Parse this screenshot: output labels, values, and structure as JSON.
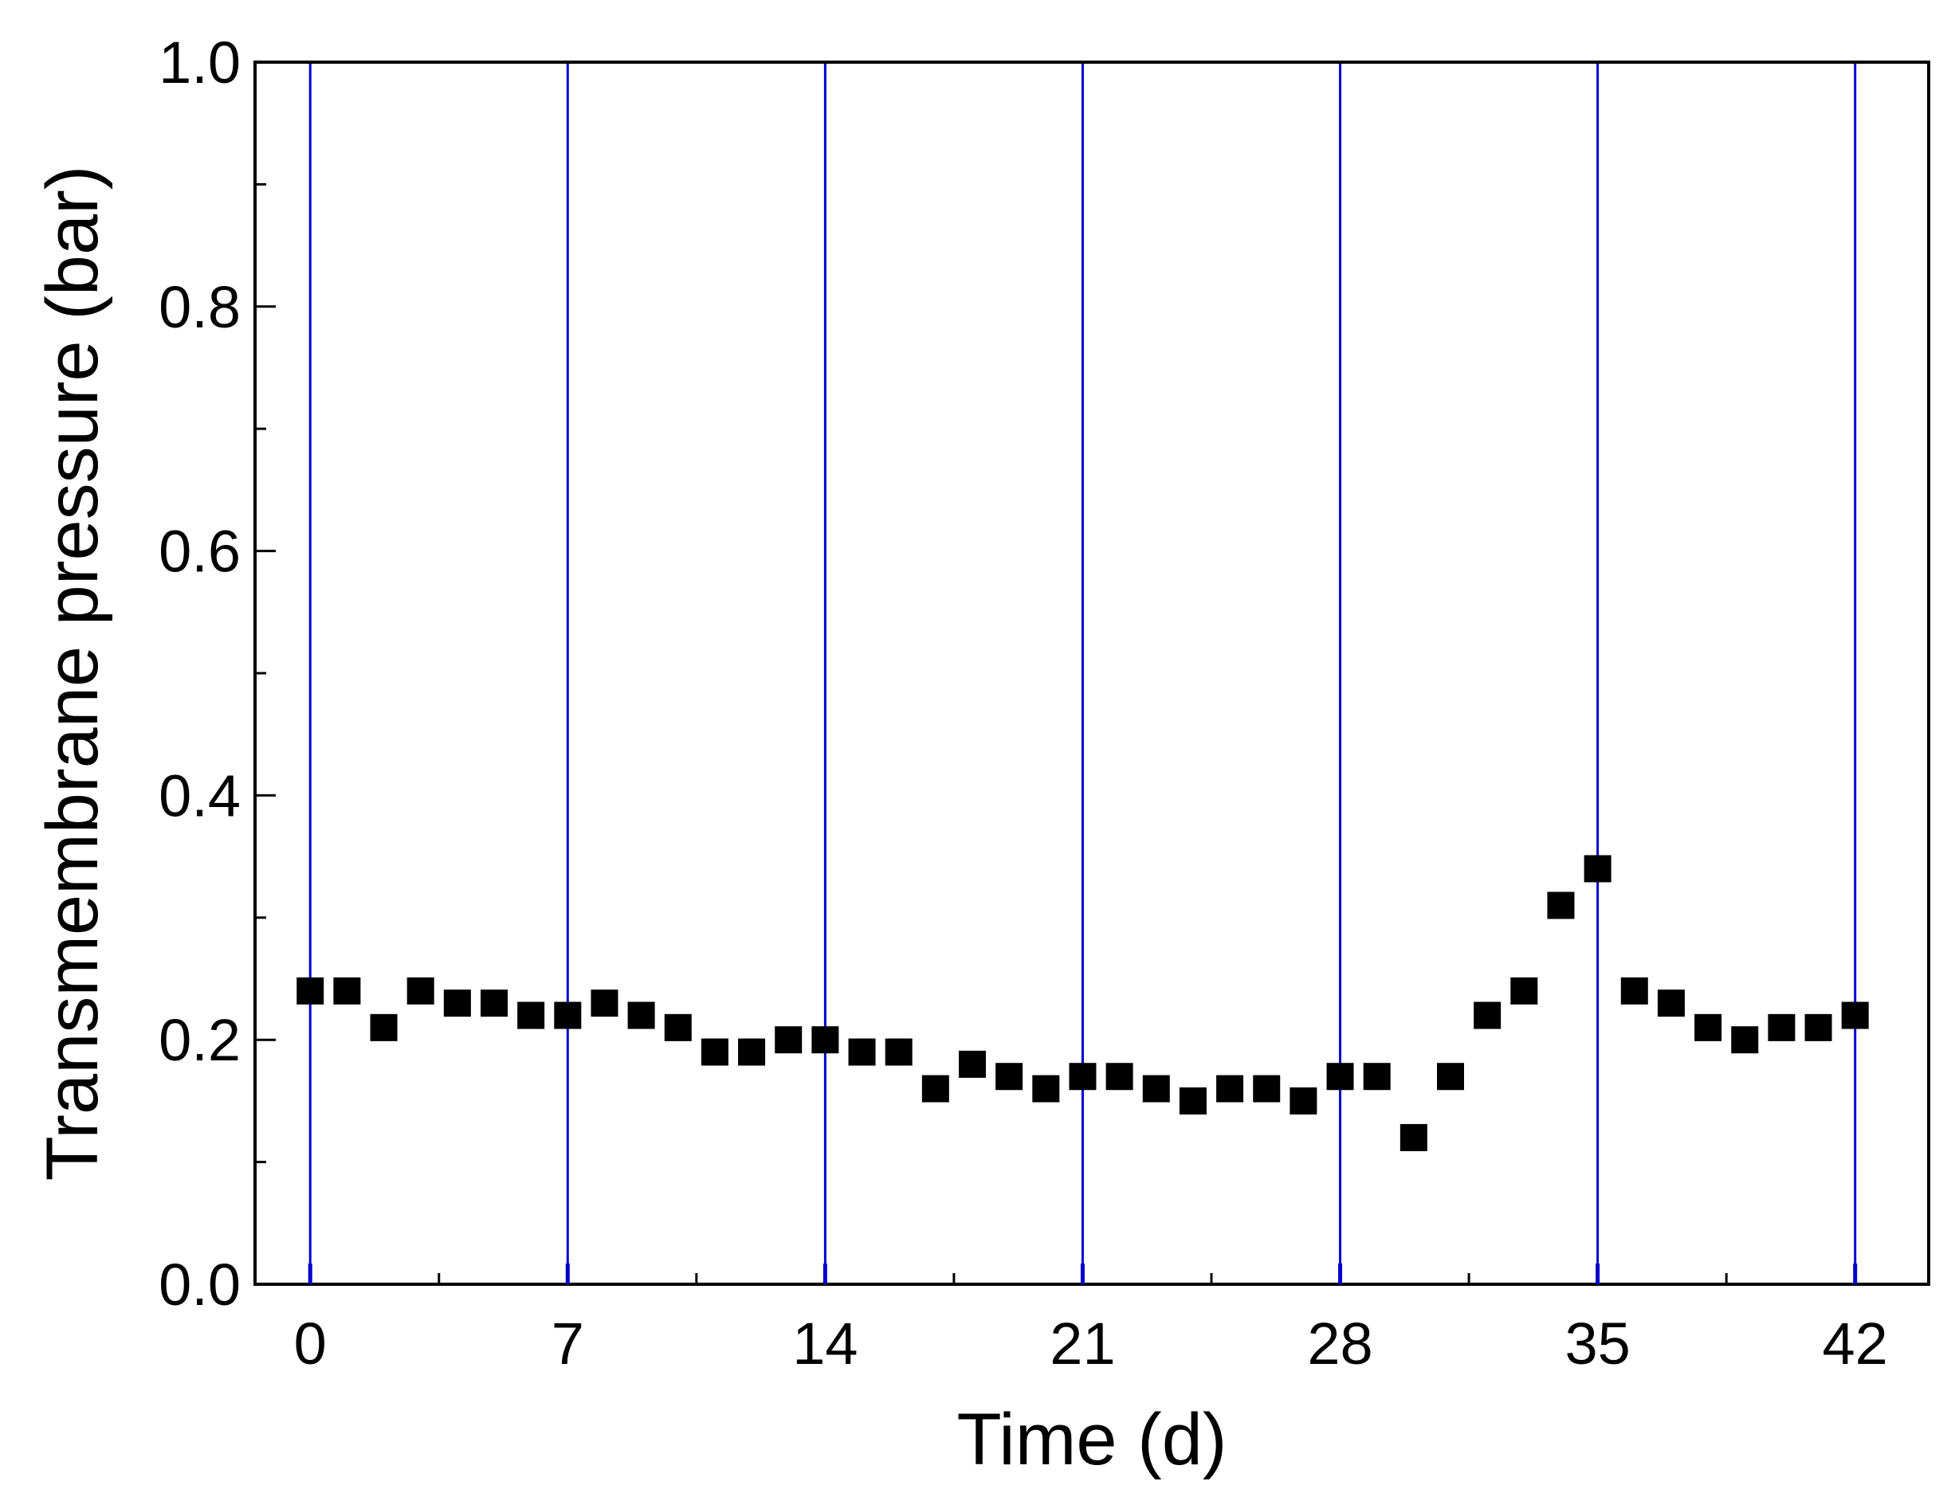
{
  "chart_data": {
    "type": "scatter",
    "title": "",
    "xlabel": "Time (d)",
    "ylabel": "Transmembrane pressure (bar)",
    "xlim": [
      -1.5,
      44
    ],
    "ylim": [
      0.0,
      1.0
    ],
    "xticks": [
      0,
      7,
      14,
      21,
      28,
      35,
      42
    ],
    "xtick_labels": [
      "0",
      "7",
      "14",
      "21",
      "28",
      "35",
      "42"
    ],
    "yticks": [
      0.0,
      0.2,
      0.4,
      0.6,
      0.8,
      1.0
    ],
    "ytick_labels": [
      "0.0",
      "0.2",
      "0.4",
      "0.6",
      "0.8",
      "1.0"
    ],
    "vertical_lines_x": [
      0,
      7,
      14,
      21,
      28,
      35,
      42
    ],
    "grid": false,
    "legend": "none",
    "colors": {
      "points": "#000000",
      "vlines": "#0000cc",
      "axes": "#000000"
    },
    "marker": "square",
    "x": [
      0,
      1,
      2,
      3,
      4,
      5,
      6,
      7,
      8,
      9,
      10,
      11,
      12,
      13,
      14,
      15,
      16,
      17,
      18,
      19,
      20,
      21,
      22,
      23,
      24,
      25,
      26,
      27,
      28,
      29,
      30,
      31,
      32,
      33,
      34,
      35,
      36,
      37,
      38,
      39,
      40,
      41,
      42
    ],
    "y": [
      0.24,
      0.24,
      0.21,
      0.24,
      0.23,
      0.23,
      0.22,
      0.22,
      0.23,
      0.22,
      0.21,
      0.19,
      0.19,
      0.2,
      0.2,
      0.19,
      0.19,
      0.16,
      0.18,
      0.17,
      0.16,
      0.17,
      0.17,
      0.16,
      0.15,
      0.16,
      0.16,
      0.15,
      0.17,
      0.17,
      0.12,
      0.17,
      0.22,
      0.24,
      0.31,
      0.34,
      0.24,
      0.23,
      0.21,
      0.2,
      0.21,
      0.21,
      0.22
    ]
  }
}
